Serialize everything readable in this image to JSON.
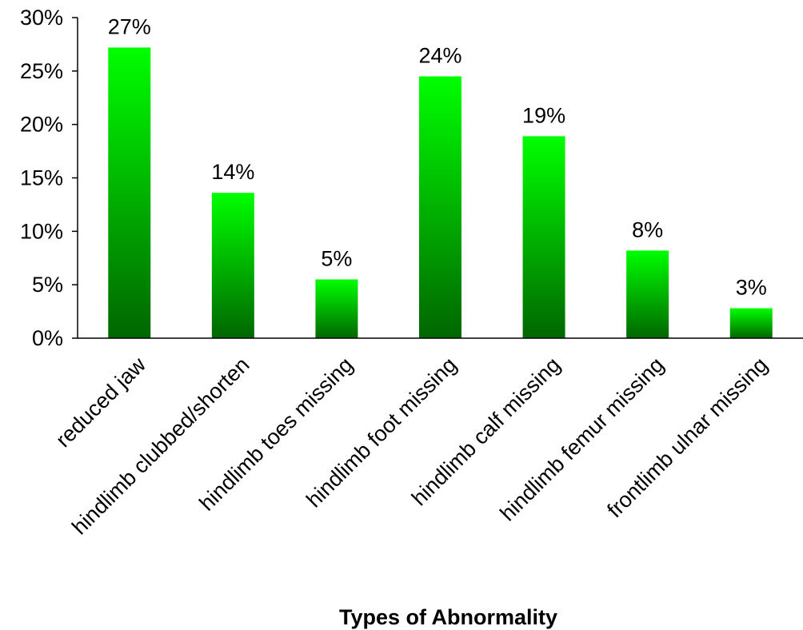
{
  "chart_data": {
    "type": "bar",
    "categories": [
      "reduced jaw",
      "hindlimb clubbed/shorten",
      "hindlimb toes missing",
      "hindlimb foot missing",
      "hindlimb calf missing",
      "hindlimb femur missing",
      "frontlimb ulnar missing"
    ],
    "values": [
      27.2,
      13.6,
      5.5,
      24.5,
      18.9,
      8.2,
      2.8
    ],
    "data_labels": [
      "27%",
      "14%",
      "5%",
      "24%",
      "19%",
      "8%",
      "3%"
    ],
    "title": "",
    "xlabel": "Types of Abnormality",
    "ylabel": "",
    "ylim": [
      0,
      30
    ],
    "yticks": [
      0,
      5,
      10,
      15,
      20,
      25,
      30
    ],
    "ytick_labels": [
      "0%",
      "5%",
      "10%",
      "15%",
      "20%",
      "25%",
      "30%"
    ],
    "grid": false,
    "legend": "none",
    "colors": {
      "bar_top": "#00ff00",
      "bar_bottom": "#006600",
      "axis": "#000000"
    }
  }
}
